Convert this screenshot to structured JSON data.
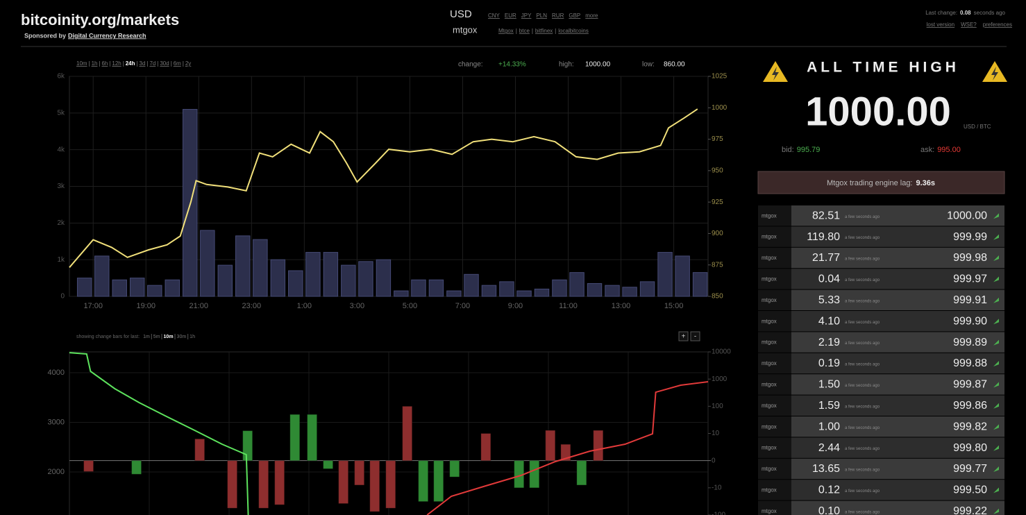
{
  "header": {
    "site": "bitcoinity.org/markets",
    "sponsor_prefix": "Sponsored by",
    "sponsor": "Digital Currency Research",
    "currency": "USD",
    "currencies": [
      "CNY",
      "EUR",
      "JPY",
      "PLN",
      "RUR",
      "GBP",
      "more"
    ],
    "exchange": "mtgox",
    "exchanges": [
      "Mtgox",
      "btce",
      "bitfinex",
      "localbitcoins"
    ],
    "last_change_label": "Last change:",
    "last_change_value": "0.08",
    "last_change_unit": "seconds ago",
    "links": [
      "lost version",
      "WSE?",
      "preferences"
    ]
  },
  "price_chart": {
    "type": "bar-line",
    "timespans": [
      "10m",
      "1h",
      "6h",
      "12h",
      "24h",
      "3d",
      "7d",
      "30d",
      "6m",
      "2y"
    ],
    "active_timespan": 4,
    "change_label": "change:",
    "change": "+14.33%",
    "high_label": "high:",
    "high": "1000.00",
    "low_label": "low:",
    "low": "860.00",
    "xlim": [
      16.1,
      40.3
    ],
    "xticks": [
      {
        "value": 17,
        "label": "17:00"
      },
      {
        "value": 19,
        "label": "19:00"
      },
      {
        "value": 21,
        "label": "21:00"
      },
      {
        "value": 23,
        "label": "23:00"
      },
      {
        "value": 25,
        "label": "1:00"
      },
      {
        "value": 27,
        "label": "3:00"
      },
      {
        "value": 29,
        "label": "5:00"
      },
      {
        "value": 31,
        "label": "7:00"
      },
      {
        "value": 33,
        "label": "9:00"
      },
      {
        "value": 35,
        "label": "11:00"
      },
      {
        "value": 37,
        "label": "13:00"
      },
      {
        "value": 39,
        "label": "15:00"
      }
    ],
    "ylim": [
      0,
      6000
    ],
    "yticks": [
      0,
      {
        "value": 1000,
        "label": "1k"
      },
      {
        "value": 2000,
        "label": "2k"
      },
      {
        "value": 3000,
        "label": "3k"
      },
      {
        "value": 4000,
        "label": "4k"
      },
      {
        "value": 5000,
        "label": "5k"
      },
      {
        "value": 6000,
        "label": "6k"
      }
    ],
    "y2lim": [
      850,
      1025
    ],
    "y2ticks": [
      850,
      875,
      900,
      925,
      950,
      975,
      1000,
      1025
    ],
    "grid": true,
    "volume": {
      "color": "#2c2f4c",
      "x": [
        16.67,
        17.33,
        18,
        18.67,
        19.33,
        20,
        20.67,
        21.33,
        22,
        22.67,
        23.33,
        24,
        24.67,
        25.33,
        26,
        26.67,
        27.33,
        28,
        28.67,
        29.33,
        30,
        30.67,
        31.33,
        32,
        32.67,
        33.33,
        34,
        34.67,
        35.33,
        36,
        36.67,
        37.33,
        38,
        38.67,
        39.33,
        40
      ],
      "values": [
        500,
        1100,
        450,
        500,
        300,
        450,
        5100,
        1800,
        850,
        1650,
        1550,
        1000,
        700,
        1200,
        1200,
        850,
        950,
        1000,
        150,
        450,
        450,
        150,
        600,
        300,
        400,
        150,
        200,
        450,
        650,
        350,
        300,
        250,
        400,
        1200,
        1100,
        650
      ]
    },
    "price": {
      "axis": "y2",
      "color": "#f1e07a",
      "x": [
        16.1,
        17.0,
        17.7,
        18.3,
        19.1,
        19.8,
        20.3,
        20.7,
        20.9,
        21.3,
        22.1,
        22.8,
        23.3,
        23.8,
        24.5,
        25.2,
        25.6,
        26.1,
        26.6,
        27.0,
        27.7,
        28.2,
        29.0,
        29.8,
        30.6,
        31.4,
        32.1,
        32.9,
        33.7,
        34.5,
        35.3,
        36.1,
        36.9,
        37.7,
        38.5,
        38.8,
        39.4,
        39.9
      ],
      "values": [
        873,
        895,
        889,
        881,
        887,
        891,
        898,
        925,
        942,
        939,
        937,
        934,
        964,
        961,
        971,
        964,
        981,
        973,
        956,
        941,
        956,
        967,
        965,
        967,
        963,
        973,
        975,
        973,
        977,
        973,
        961,
        959,
        964,
        965,
        970,
        984,
        992,
        999
      ]
    }
  },
  "depth_chart": {
    "type": "bar-line",
    "caption": "showing change bars for last:",
    "periods": [
      "1m",
      "5m",
      "10m",
      "30m",
      "1h"
    ],
    "active_period": 2,
    "zoom_in": "+",
    "zoom_out": "-",
    "xlim": [
      0,
      100
    ],
    "ylim": [
      1133,
      4420
    ],
    "yticks": [
      2000,
      3000,
      4000
    ],
    "y2lim": [
      -100,
      10000
    ],
    "y2ticks": [
      -100,
      -10,
      0,
      10,
      100,
      1000,
      10000
    ],
    "y2scale": "symlog",
    "series": [
      {
        "name": "bids",
        "color": "#2f8a34",
        "bars_x": [
          10.5,
          27.9,
          35.3,
          38.0,
          40.5,
          55.4,
          57.8,
          60.3,
          70.4,
          72.8,
          80.2
        ],
        "bars": [
          -5,
          12.6,
          50,
          50,
          -3,
          -32,
          -32,
          -6,
          -10,
          -10,
          -9
        ],
        "line_x": [
          0,
          2.7,
          3.3,
          7.1,
          10.9,
          15.2,
          19.6,
          23.9,
          27.7,
          28.0
        ],
        "line": [
          4405,
          4378,
          4028,
          3678,
          3399,
          3119,
          2839,
          2560,
          2350,
          1133
        ],
        "line_color": "#5de35d"
      },
      {
        "name": "asks",
        "color": "#8e2e2e",
        "bars_x": [
          3.0,
          20.4,
          25.5,
          30.4,
          32.9,
          42.9,
          45.4,
          47.8,
          50.3,
          52.9,
          65.2,
          75.3,
          77.7,
          82.8
        ],
        "bars": [
          -4,
          8,
          -56,
          -56,
          -42,
          -38,
          -9,
          -75,
          -56,
          100,
          10,
          13,
          6,
          13
        ],
        "line_x": [
          56.0,
          59.8,
          65.2,
          70.7,
          76.1,
          81.5,
          87.0,
          91.3,
          91.8,
          95.7,
          100
        ],
        "line": [
          1133,
          1510,
          1720,
          1930,
          2210,
          2420,
          2560,
          2770,
          3608,
          3748,
          3818
        ],
        "line_color": "#e23a3a"
      }
    ]
  },
  "ticker": {
    "title": "ALL TIME HIGH",
    "price": "1000.00",
    "unit": "USD / BTC",
    "bid_label": "bid:",
    "bid": "995.79",
    "ask_label": "ask:",
    "ask": "995.00",
    "lag_label": "Mtgox trading engine lag:",
    "lag": "9.36s"
  },
  "trades": {
    "rows": [
      [
        "mtgox",
        "82.51",
        "a few seconds ago",
        "1000.00"
      ],
      [
        "mtgox",
        "119.80",
        "a few seconds ago",
        "999.99"
      ],
      [
        "mtgox",
        "21.77",
        "a few seconds ago",
        "999.98"
      ],
      [
        "mtgox",
        "0.04",
        "a few seconds ago",
        "999.97"
      ],
      [
        "mtgox",
        "5.33",
        "a few seconds ago",
        "999.91"
      ],
      [
        "mtgox",
        "4.10",
        "a few seconds ago",
        "999.90"
      ],
      [
        "mtgox",
        "2.19",
        "a few seconds ago",
        "999.89"
      ],
      [
        "mtgox",
        "0.19",
        "a few seconds ago",
        "999.88"
      ],
      [
        "mtgox",
        "1.50",
        "a few seconds ago",
        "999.87"
      ],
      [
        "mtgox",
        "1.59",
        "a few seconds ago",
        "999.86"
      ],
      [
        "mtgox",
        "1.00",
        "a few seconds ago",
        "999.82"
      ],
      [
        "mtgox",
        "2.44",
        "a few seconds ago",
        "999.80"
      ],
      [
        "mtgox",
        "13.65",
        "a few seconds ago",
        "999.77"
      ],
      [
        "mtgox",
        "0.12",
        "a few seconds ago",
        "999.50"
      ],
      [
        "mtgox",
        "0.10",
        "a few seconds ago",
        "999.22"
      ]
    ]
  }
}
